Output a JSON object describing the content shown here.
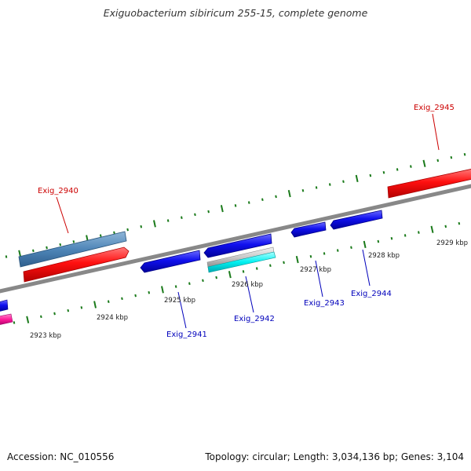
{
  "title": "Exiguobacterium sibiricum 255-15, complete genome",
  "footer": {
    "accession": "Accession: NC_010556",
    "summary": "Topology: circular; Length: 3,034,136 bp; Genes: 3,104"
  },
  "colors": {
    "background": "#ffffff",
    "backbone": "#888888",
    "tick": "#1a7a1a",
    "forward_gene": "#ff0000",
    "reverse_gene": "#0000ee",
    "forward_label": "#cc0000",
    "reverse_label": "#0000bb"
  },
  "scale_labels": [
    "2923 kbp",
    "2924 kbp",
    "2925 kbp",
    "2926 kbp",
    "2927 kbp",
    "2928 kbp",
    "2929 kbp"
  ],
  "gene_labels": [
    {
      "text": "Exig_2940",
      "strand": "forward"
    },
    {
      "text": "Exig_2941",
      "strand": "reverse"
    },
    {
      "text": "Exig_2942",
      "strand": "reverse"
    },
    {
      "text": "Exig_2943",
      "strand": "reverse"
    },
    {
      "text": "Exig_2944",
      "strand": "reverse"
    },
    {
      "text": "Exig_2945",
      "strand": "forward"
    }
  ]
}
